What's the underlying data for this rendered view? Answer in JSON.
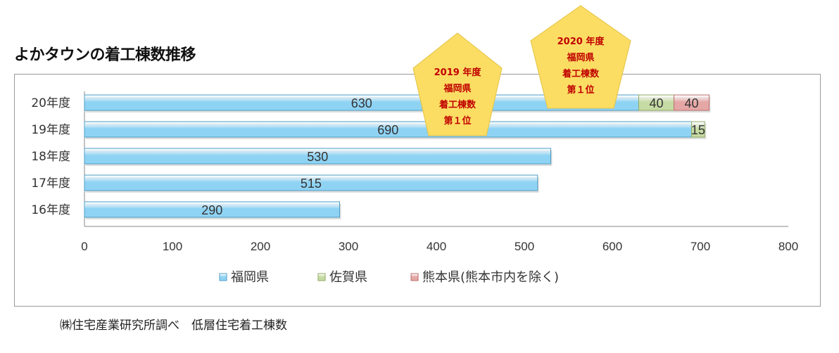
{
  "title": "よかタウンの着工棟数推移",
  "source_note": "㈱住宅産業研究所調べ　低層住宅着工棟数",
  "badges": [
    {
      "lines": [
        "2019 年度",
        "福岡県",
        "着工棟数",
        "第１位"
      ]
    },
    {
      "lines": [
        "2020 年度",
        "福岡県",
        "着工棟数",
        "第１位"
      ]
    }
  ],
  "colors": {
    "fukuoka": "#8fd3f4",
    "saga": "#c6dba3",
    "kumamoto": "#e5a7a5",
    "badge": "#fbdd63",
    "badge_text": "#c00000"
  },
  "chart_data": {
    "type": "bar",
    "orientation": "horizontal",
    "stacked": true,
    "categories": [
      "20年度",
      "19年度",
      "18年度",
      "17年度",
      "16年度"
    ],
    "series": [
      {
        "name": "福岡県",
        "values": [
          630,
          690,
          530,
          515,
          290
        ],
        "labels": [
          "630",
          "690",
          "530",
          "515",
          "290"
        ]
      },
      {
        "name": "佐賀県",
        "values": [
          40,
          15,
          0,
          0,
          0
        ],
        "labels": [
          "40",
          "15",
          "",
          "",
          ""
        ]
      },
      {
        "name": "熊本県(熊本市内を除く)",
        "values": [
          40,
          0,
          0,
          0,
          0
        ],
        "labels": [
          "40",
          "",
          "",
          "",
          ""
        ]
      }
    ],
    "xlim": [
      0,
      800
    ],
    "xticks": [
      "0",
      "100",
      "200",
      "300",
      "400",
      "500",
      "600",
      "700",
      "800"
    ],
    "legend_position": "bottom",
    "grid": false
  }
}
